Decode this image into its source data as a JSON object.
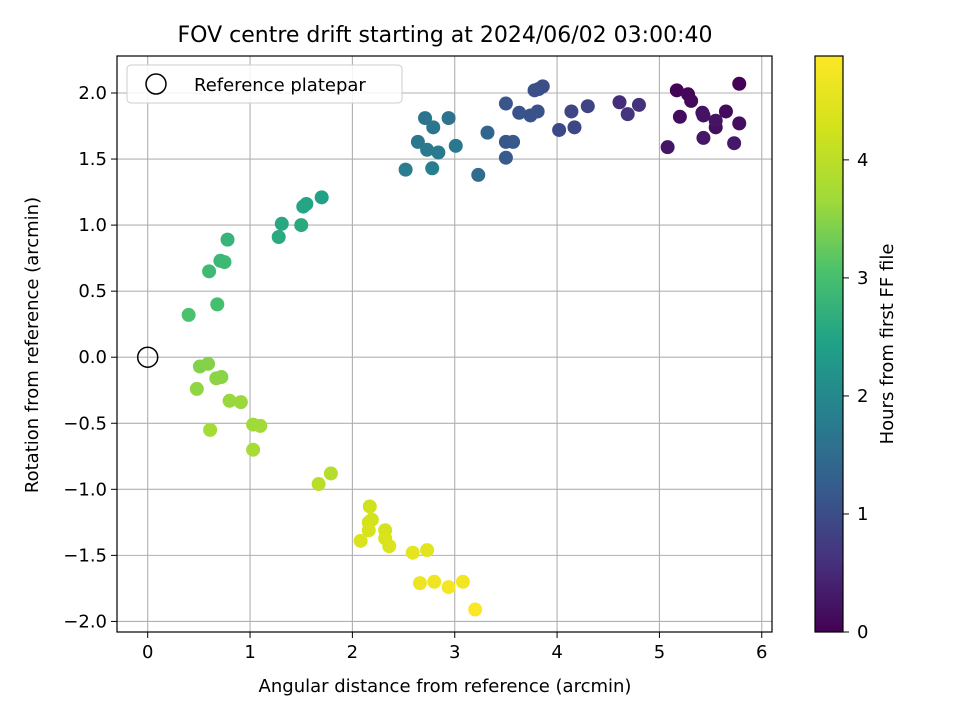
{
  "chart_data": {
    "type": "scatter",
    "title": "FOV centre drift starting at 2024/06/02 03:00:40",
    "xlabel": "Angular distance from reference (arcmin)",
    "ylabel": "Rotation from reference (arcmin)",
    "xlim": [
      -0.3,
      6.1
    ],
    "ylim": [
      -2.08,
      2.28
    ],
    "xticks": [
      0,
      1,
      2,
      3,
      4,
      5,
      6
    ],
    "xtick_labels": [
      "0",
      "1",
      "2",
      "3",
      "4",
      "5",
      "6"
    ],
    "yticks": [
      -2.0,
      -1.5,
      -1.0,
      -0.5,
      0.0,
      0.5,
      1.0,
      1.5,
      2.0
    ],
    "ytick_labels": [
      "−2.0",
      "−1.5",
      "−1.0",
      "−0.5",
      "0.0",
      "0.5",
      "1.0",
      "1.5",
      "2.0"
    ],
    "grid": true,
    "legend": {
      "position": "top-left",
      "label": "Reference platepar"
    },
    "reference_point": {
      "x": 0,
      "y": 0
    },
    "colorbar": {
      "label": "Hours from first FF file",
      "colormap": "viridis",
      "range": [
        0,
        4.88
      ],
      "ticks": [
        0,
        1,
        2,
        3,
        4
      ],
      "tick_labels": [
        "0",
        "1",
        "2",
        "3",
        "4"
      ]
    },
    "points": [
      {
        "x": 5.78,
        "y": 2.07,
        "c": 0.02
      },
      {
        "x": 5.17,
        "y": 2.02,
        "c": 0.05
      },
      {
        "x": 5.28,
        "y": 1.99,
        "c": 0.08
      },
      {
        "x": 5.31,
        "y": 1.94,
        "c": 0.1
      },
      {
        "x": 5.65,
        "y": 1.86,
        "c": 0.12
      },
      {
        "x": 5.2,
        "y": 1.82,
        "c": 0.14
      },
      {
        "x": 5.78,
        "y": 1.77,
        "c": 0.16
      },
      {
        "x": 5.55,
        "y": 1.74,
        "c": 0.18
      },
      {
        "x": 5.42,
        "y": 1.85,
        "c": 0.2
      },
      {
        "x": 5.43,
        "y": 1.83,
        "c": 0.22
      },
      {
        "x": 5.55,
        "y": 1.79,
        "c": 0.24
      },
      {
        "x": 5.08,
        "y": 1.59,
        "c": 0.26
      },
      {
        "x": 5.43,
        "y": 1.66,
        "c": 0.28
      },
      {
        "x": 5.73,
        "y": 1.62,
        "c": 0.3
      },
      {
        "x": 4.61,
        "y": 1.93,
        "c": 0.55
      },
      {
        "x": 4.8,
        "y": 1.91,
        "c": 0.6
      },
      {
        "x": 4.69,
        "y": 1.84,
        "c": 0.65
      },
      {
        "x": 4.3,
        "y": 1.9,
        "c": 0.85
      },
      {
        "x": 4.14,
        "y": 1.86,
        "c": 0.9
      },
      {
        "x": 4.17,
        "y": 1.74,
        "c": 0.92
      },
      {
        "x": 4.02,
        "y": 1.72,
        "c": 0.95
      },
      {
        "x": 3.86,
        "y": 2.05,
        "c": 1.0
      },
      {
        "x": 3.82,
        "y": 2.03,
        "c": 1.02
      },
      {
        "x": 3.78,
        "y": 2.02,
        "c": 1.04
      },
      {
        "x": 3.81,
        "y": 1.86,
        "c": 1.06
      },
      {
        "x": 3.74,
        "y": 1.83,
        "c": 1.08
      },
      {
        "x": 3.63,
        "y": 1.85,
        "c": 1.1
      },
      {
        "x": 3.5,
        "y": 1.92,
        "c": 1.12
      },
      {
        "x": 3.5,
        "y": 1.63,
        "c": 1.15
      },
      {
        "x": 3.57,
        "y": 1.63,
        "c": 1.17
      },
      {
        "x": 3.5,
        "y": 1.51,
        "c": 1.2
      },
      {
        "x": 3.32,
        "y": 1.7,
        "c": 1.4
      },
      {
        "x": 3.23,
        "y": 1.38,
        "c": 1.5
      },
      {
        "x": 2.94,
        "y": 1.81,
        "c": 1.6
      },
      {
        "x": 2.71,
        "y": 1.81,
        "c": 1.63
      },
      {
        "x": 2.79,
        "y": 1.74,
        "c": 1.66
      },
      {
        "x": 2.64,
        "y": 1.63,
        "c": 1.69
      },
      {
        "x": 2.73,
        "y": 1.57,
        "c": 1.72
      },
      {
        "x": 2.84,
        "y": 1.55,
        "c": 1.75
      },
      {
        "x": 3.01,
        "y": 1.6,
        "c": 1.7
      },
      {
        "x": 2.52,
        "y": 1.42,
        "c": 1.8
      },
      {
        "x": 2.78,
        "y": 1.43,
        "c": 1.82
      },
      {
        "x": 1.7,
        "y": 1.21,
        "c": 2.45
      },
      {
        "x": 1.55,
        "y": 1.16,
        "c": 2.5
      },
      {
        "x": 1.52,
        "y": 1.14,
        "c": 2.52
      },
      {
        "x": 1.31,
        "y": 1.01,
        "c": 2.55
      },
      {
        "x": 1.5,
        "y": 1.0,
        "c": 2.6
      },
      {
        "x": 1.28,
        "y": 0.91,
        "c": 2.62
      },
      {
        "x": 0.78,
        "y": 0.89,
        "c": 2.8
      },
      {
        "x": 0.71,
        "y": 0.73,
        "c": 2.85
      },
      {
        "x": 0.75,
        "y": 0.72,
        "c": 2.87
      },
      {
        "x": 0.6,
        "y": 0.65,
        "c": 2.9
      },
      {
        "x": 0.68,
        "y": 0.4,
        "c": 3.0
      },
      {
        "x": 0.4,
        "y": 0.32,
        "c": 3.05
      },
      {
        "x": 0.51,
        "y": -0.07,
        "c": 3.45
      },
      {
        "x": 0.59,
        "y": -0.05,
        "c": 3.47
      },
      {
        "x": 0.72,
        "y": -0.15,
        "c": 3.5
      },
      {
        "x": 0.67,
        "y": -0.16,
        "c": 3.52
      },
      {
        "x": 0.48,
        "y": -0.24,
        "c": 3.55
      },
      {
        "x": 0.8,
        "y": -0.33,
        "c": 3.6
      },
      {
        "x": 0.91,
        "y": -0.34,
        "c": 3.62
      },
      {
        "x": 1.03,
        "y": -0.51,
        "c": 3.65
      },
      {
        "x": 1.1,
        "y": -0.52,
        "c": 3.67
      },
      {
        "x": 0.61,
        "y": -0.55,
        "c": 3.7
      },
      {
        "x": 1.03,
        "y": -0.7,
        "c": 3.75
      },
      {
        "x": 1.79,
        "y": -0.88,
        "c": 3.9
      },
      {
        "x": 1.67,
        "y": -0.96,
        "c": 3.95
      },
      {
        "x": 2.17,
        "y": -1.13,
        "c": 4.25
      },
      {
        "x": 2.19,
        "y": -1.23,
        "c": 4.28
      },
      {
        "x": 2.16,
        "y": -1.25,
        "c": 4.3
      },
      {
        "x": 2.32,
        "y": -1.31,
        "c": 4.32
      },
      {
        "x": 2.16,
        "y": -1.31,
        "c": 4.34
      },
      {
        "x": 2.32,
        "y": -1.37,
        "c": 4.36
      },
      {
        "x": 2.08,
        "y": -1.39,
        "c": 4.38
      },
      {
        "x": 2.36,
        "y": -1.43,
        "c": 4.4
      },
      {
        "x": 2.73,
        "y": -1.46,
        "c": 4.5
      },
      {
        "x": 2.59,
        "y": -1.48,
        "c": 4.52
      },
      {
        "x": 2.66,
        "y": -1.71,
        "c": 4.65
      },
      {
        "x": 2.8,
        "y": -1.7,
        "c": 4.68
      },
      {
        "x": 3.08,
        "y": -1.7,
        "c": 4.72
      },
      {
        "x": 2.94,
        "y": -1.74,
        "c": 4.75
      },
      {
        "x": 3.2,
        "y": -1.91,
        "c": 4.85
      }
    ]
  }
}
